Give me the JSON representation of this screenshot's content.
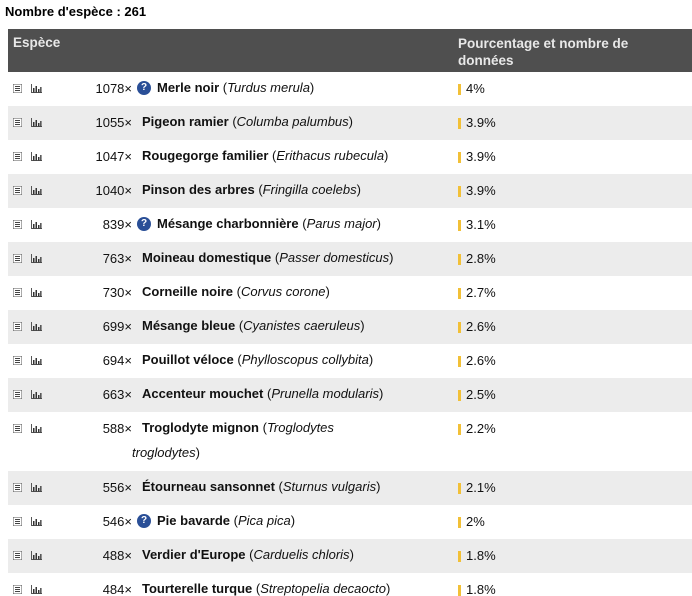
{
  "header": {
    "species_count": "Nombre d'espèce : 261"
  },
  "table": {
    "col_species": "Espèce",
    "col_percent": "Pourcentage et nombre de données"
  },
  "rows": [
    {
      "count": "1078×",
      "info": true,
      "name": "Merle noir",
      "open": " (",
      "latin": "Turdus merula",
      "close": ")",
      "pct": "4%"
    },
    {
      "count": "1055×",
      "info": false,
      "name": "Pigeon ramier",
      "open": " (",
      "latin": "Columba palumbus",
      "close": ")",
      "pct": "3.9%"
    },
    {
      "count": "1047×",
      "info": false,
      "name": "Rougegorge familier",
      "open": " (",
      "latin": "Erithacus rubecula",
      "close": ")",
      "pct": "3.9%"
    },
    {
      "count": "1040×",
      "info": false,
      "name": "Pinson des arbres",
      "open": " (",
      "latin": "Fringilla coelebs",
      "close": ")",
      "pct": "3.9%"
    },
    {
      "count": "839×",
      "info": true,
      "name": "Mésange charbonnière",
      "open": " (",
      "latin": "Parus major",
      "close": ")",
      "pct": "3.1%"
    },
    {
      "count": "763×",
      "info": false,
      "name": "Moineau domestique",
      "open": " (",
      "latin": "Passer domesticus",
      "close": ")",
      "pct": "2.8%"
    },
    {
      "count": "730×",
      "info": false,
      "name": "Corneille noire",
      "open": " (",
      "latin": "Corvus corone",
      "close": ")",
      "pct": "2.7%"
    },
    {
      "count": "699×",
      "info": false,
      "name": "Mésange bleue",
      "open": " (",
      "latin": "Cyanistes caeruleus",
      "close": ")",
      "pct": "2.6%"
    },
    {
      "count": "694×",
      "info": false,
      "name": "Pouillot véloce",
      "open": " (",
      "latin": "Phylloscopus collybita",
      "close": ")",
      "pct": "2.6%"
    },
    {
      "count": "663×",
      "info": false,
      "name": "Accenteur mouchet",
      "open": " (",
      "latin": "Prunella modularis",
      "close": ")",
      "pct": "2.5%"
    },
    {
      "count": "588×",
      "info": false,
      "name": "Troglodyte mignon",
      "open": " (",
      "latin": "Troglodytes troglodytes",
      "close": ")",
      "pct": "2.2%"
    },
    {
      "count": "556×",
      "info": false,
      "name": "Étourneau sansonnet",
      "open": " (",
      "latin": "Sturnus vulgaris",
      "close": ")",
      "pct": "2.1%"
    },
    {
      "count": "546×",
      "info": true,
      "name": "Pie bavarde",
      "open": " (",
      "latin": "Pica pica",
      "close": ")",
      "pct": "2%"
    },
    {
      "count": "488×",
      "info": false,
      "name": "Verdier d'Europe",
      "open": " (",
      "latin": "Carduelis chloris",
      "close": ")",
      "pct": "1.8%"
    },
    {
      "count": "484×",
      "info": false,
      "name": "Tourterelle turque",
      "open": " (",
      "latin": "Streptopelia decaocto",
      "close": ")",
      "pct": "1.8%"
    }
  ],
  "info_icon_glyph": "?",
  "colors": {
    "header_bg": "#4f4f4f",
    "row_alt": "#ececec",
    "bar": "#f2c037",
    "info_icon": "#2a4f97"
  },
  "icons": {
    "row_left": "list-icon",
    "row_right": "bar-chart-icon",
    "info": "info-icon"
  }
}
